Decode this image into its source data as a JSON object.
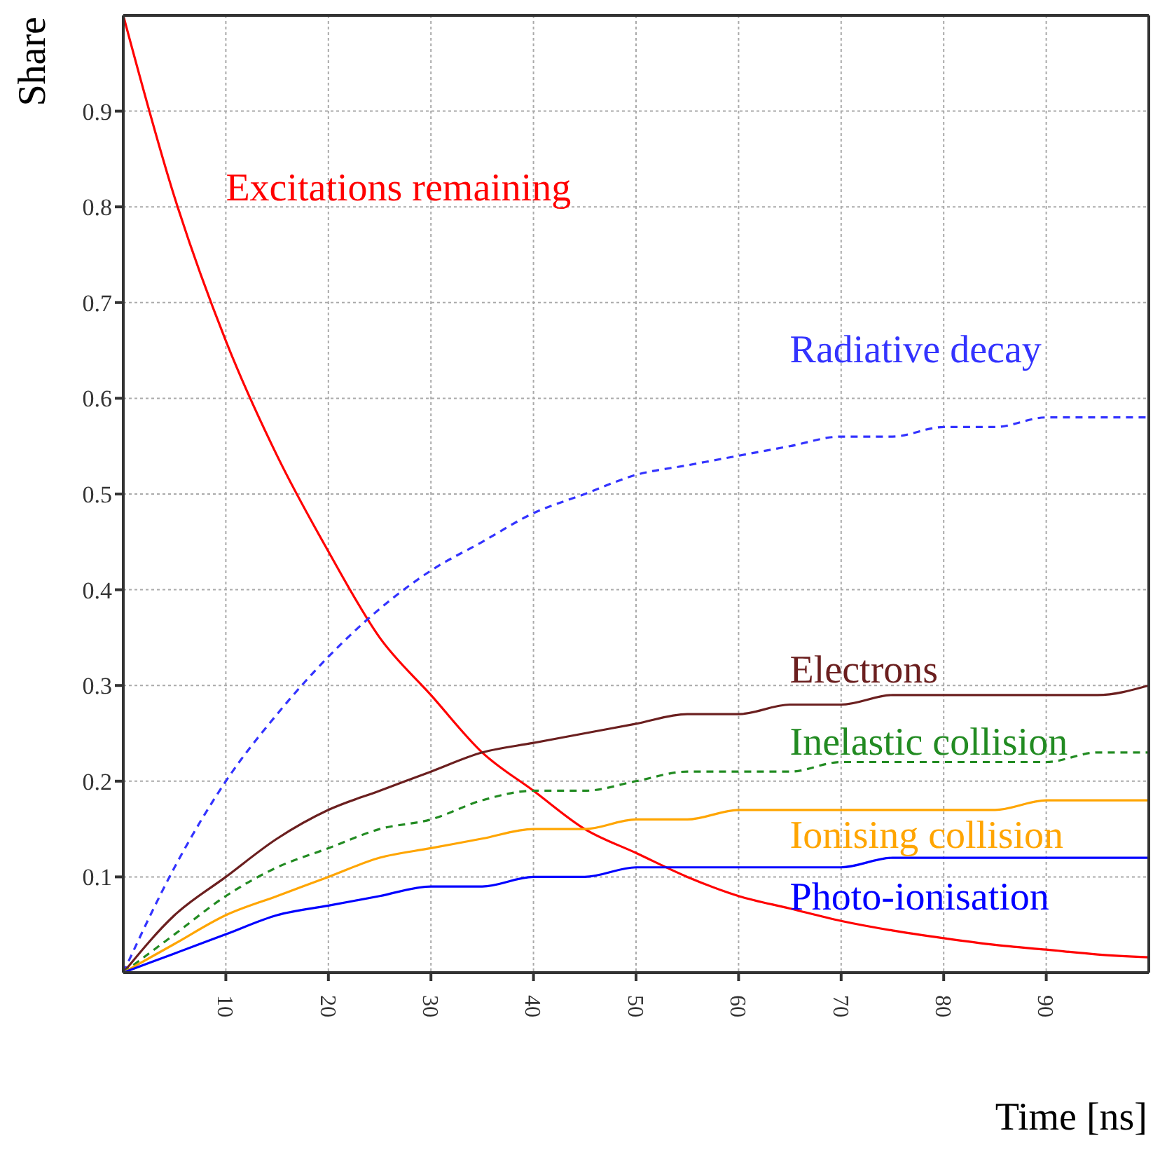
{
  "chart_data": {
    "type": "line",
    "xlabel": "Time [ns]",
    "ylabel": "Share",
    "x": [
      0,
      5,
      10,
      15,
      20,
      25,
      30,
      35,
      40,
      45,
      50,
      55,
      60,
      65,
      70,
      75,
      80,
      85,
      90,
      95,
      100
    ],
    "xlim": [
      0,
      100
    ],
    "xticks": [
      10,
      20,
      30,
      40,
      50,
      60,
      70,
      80,
      90
    ],
    "ylim": [
      0,
      1
    ],
    "yticks": [
      0.1,
      0.2,
      0.3,
      0.4,
      0.5,
      0.6,
      0.7,
      0.8,
      0.9
    ],
    "grid": true,
    "legend": false,
    "marker": "none",
    "series": [
      {
        "name": "Excitations remaining",
        "color": "#ff0000",
        "line_style": "solid",
        "values": [
          1,
          0.81,
          0.66,
          0.54,
          0.44,
          0.35,
          0.29,
          0.23,
          0.19,
          0.15,
          0.125,
          0.1,
          0.08,
          0.067,
          0.054,
          0.044,
          0.036,
          0.029,
          0.024,
          0.019,
          0.016
        ]
      },
      {
        "name": "Radiative decay",
        "color": "#3333ff",
        "line_style": "dashed",
        "values": [
          0,
          0.11,
          0.2,
          0.27,
          0.33,
          0.38,
          0.42,
          0.45,
          0.48,
          0.5,
          0.52,
          0.53,
          0.54,
          0.55,
          0.56,
          0.56,
          0.57,
          0.57,
          0.58,
          0.58,
          0.58
        ]
      },
      {
        "name": "Electrons",
        "color": "#6b1f1f",
        "line_style": "solid",
        "values": [
          0,
          0.06,
          0.1,
          0.14,
          0.17,
          0.19,
          0.21,
          0.23,
          0.24,
          0.25,
          0.26,
          0.27,
          0.27,
          0.28,
          0.28,
          0.29,
          0.29,
          0.29,
          0.29,
          0.29,
          0.3
        ]
      },
      {
        "name": "Inelastic collision",
        "color": "#228b22",
        "line_style": "dashed",
        "values": [
          0,
          0.04,
          0.08,
          0.11,
          0.13,
          0.15,
          0.16,
          0.18,
          0.19,
          0.19,
          0.2,
          0.21,
          0.21,
          0.21,
          0.22,
          0.22,
          0.22,
          0.22,
          0.22,
          0.23,
          0.23
        ]
      },
      {
        "name": "Ionising collision",
        "color": "#ffa500",
        "line_style": "solid",
        "values": [
          0,
          0.03,
          0.06,
          0.08,
          0.1,
          0.12,
          0.13,
          0.14,
          0.15,
          0.15,
          0.16,
          0.16,
          0.17,
          0.17,
          0.17,
          0.17,
          0.17,
          0.17,
          0.18,
          0.18,
          0.18
        ]
      },
      {
        "name": "Photo-ionisation",
        "color": "#0000ff",
        "line_style": "solid",
        "values": [
          0,
          0.02,
          0.04,
          0.06,
          0.07,
          0.08,
          0.09,
          0.09,
          0.1,
          0.1,
          0.11,
          0.11,
          0.11,
          0.11,
          0.11,
          0.12,
          0.12,
          0.12,
          0.12,
          0.12,
          0.12
        ]
      }
    ]
  }
}
